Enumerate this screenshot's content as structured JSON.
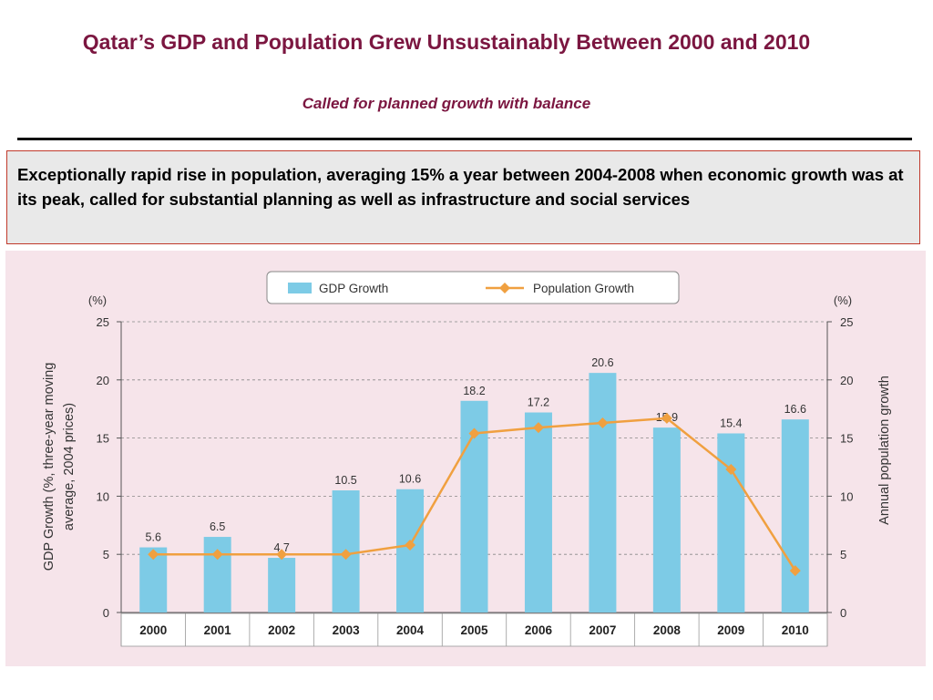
{
  "slide": {
    "title": "Qatar’s GDP and Population Grew Unsustainably Between 2000 and 2010",
    "subtitle": "Called for planned growth with balance"
  },
  "callout": {
    "text": "Exceptionally rapid rise in population, averaging 15% a year between 2004-2008 when economic growth was at its peak, called for substantial planning as well as infrastructure and social services"
  },
  "colors": {
    "title": "#7b1640",
    "gdp_bar": "#7dcbe6",
    "population_line": "#f0a040",
    "panel_bg": "#f6e4ea",
    "callout_border": "#c0392b"
  },
  "chart_data": {
    "type": "bar",
    "categories": [
      "2000",
      "2001",
      "2002",
      "2003",
      "2004",
      "2005",
      "2006",
      "2007",
      "2008",
      "2009",
      "2010"
    ],
    "series": [
      {
        "name": "GDP Growth",
        "type": "bar",
        "axis": "left",
        "values": [
          5.6,
          6.5,
          4.7,
          10.5,
          10.6,
          18.2,
          17.2,
          20.6,
          15.9,
          15.4,
          16.6
        ],
        "data_labels": [
          "5.6",
          "6.5",
          "4.7",
          "10.5",
          "10.6",
          "18.2",
          "17.2",
          "20.6",
          "15.9",
          "15.4",
          "16.6"
        ]
      },
      {
        "name": "Population Growth",
        "type": "line",
        "axis": "right",
        "marker": "diamond",
        "values": [
          5.0,
          5.0,
          5.0,
          5.0,
          5.8,
          15.4,
          15.9,
          16.3,
          16.7,
          12.3,
          3.6
        ]
      }
    ],
    "ylabel": "GDP Growth (%, three-year  moving average, 2004 prices)",
    "y2label": "Annual population growth",
    "yunit": "(%)",
    "y2unit": "(%)",
    "ylim": [
      0,
      25
    ],
    "y2lim": [
      0,
      25
    ],
    "yticks": [
      "0",
      "5",
      "10",
      "15",
      "20",
      "25"
    ],
    "y2ticks": [
      "0",
      "5",
      "10",
      "15",
      "20",
      "25"
    ],
    "grid": "dashed-horizontal",
    "legend": "top-center"
  }
}
